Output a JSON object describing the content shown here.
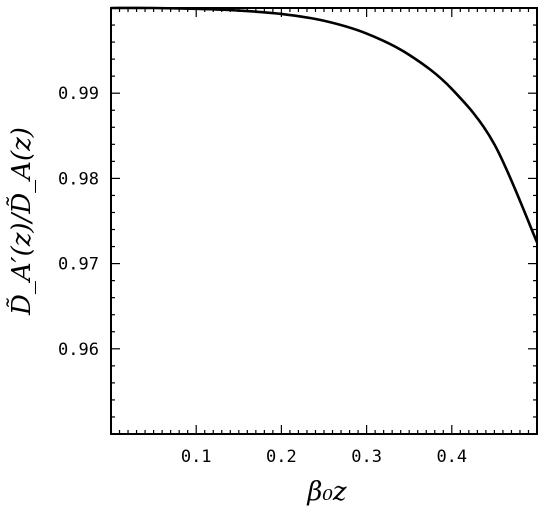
{
  "chart_data": {
    "type": "line",
    "title": "",
    "xlabel": "β₀z",
    "ylabel": "D̃_A′(z)/D̃_A(z)",
    "xlim": [
      0.0,
      0.5
    ],
    "ylim": [
      0.95,
      1.0
    ],
    "xticks": [
      0.1,
      0.2,
      0.3,
      0.4
    ],
    "xtick_labels": [
      "0.1",
      "0.2",
      "0.3",
      "0.4"
    ],
    "yticks": [
      0.96,
      0.97,
      0.98,
      0.99
    ],
    "ytick_labels": [
      "0.96",
      "0.97",
      "0.98",
      "0.99"
    ],
    "grid": false,
    "series": [
      {
        "x": [
          0.0,
          0.05,
          0.1,
          0.15,
          0.2,
          0.25,
          0.3,
          0.35,
          0.4,
          0.45,
          0.5
        ],
        "y": [
          1.0,
          1.0,
          0.9999,
          0.9997,
          0.9993,
          0.9985,
          0.997,
          0.9945,
          0.9905,
          0.984,
          0.9725
        ]
      }
    ]
  }
}
